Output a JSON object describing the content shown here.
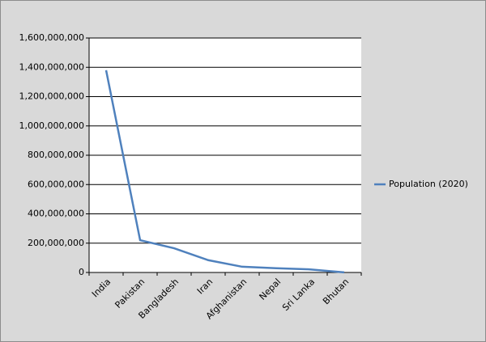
{
  "chart_data": {
    "type": "line",
    "categories": [
      "India",
      "Pakistan",
      "Bangladesh",
      "Iran",
      "Afghanistan",
      "Nepal",
      "Sri Lanka",
      "Bhutan"
    ],
    "series": [
      {
        "name": "Population (2020)",
        "color": "#4f81bd",
        "values": [
          1380000000,
          220000000,
          165000000,
          84000000,
          39000000,
          29000000,
          21000000,
          770000
        ]
      }
    ],
    "ylim": [
      0,
      1600000000
    ],
    "yticks": [
      0,
      {
        "value": 200000000,
        "label": "200,000,000"
      },
      {
        "value": 400000000,
        "label": "400,000,000"
      },
      {
        "value": 600000000,
        "label": "600,000,000"
      },
      {
        "value": 800000000,
        "label": "800,000,000"
      },
      {
        "value": 1000000000,
        "label": "1,000,000,000"
      },
      {
        "value": 1200000000,
        "label": "1,200,000,000"
      },
      {
        "value": 1400000000,
        "label": "1,400,000,000"
      },
      {
        "value": 1600000000,
        "label": "1,600,000,000"
      }
    ],
    "grid": true,
    "legend": "right"
  }
}
